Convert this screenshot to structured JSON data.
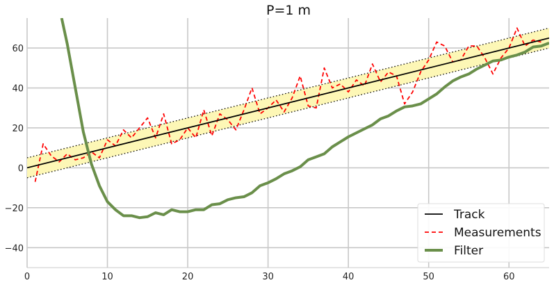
{
  "chart_data": {
    "type": "line",
    "title": "P=1 m",
    "xlabel": "",
    "ylabel": "",
    "xlim": [
      0,
      65
    ],
    "ylim": [
      -50,
      75
    ],
    "x_ticks": [
      0,
      10,
      20,
      30,
      40,
      50,
      60
    ],
    "y_ticks": [
      -40,
      -20,
      0,
      20,
      40,
      60
    ],
    "grid": true,
    "legend_position": "bottom-right",
    "band_half_width": 5,
    "track": {
      "x": [
        0,
        65
      ],
      "y": [
        0,
        65
      ]
    },
    "series": [
      {
        "name": "Track",
        "style": "solid",
        "color": "#000000",
        "x": [
          0,
          65
        ],
        "y": [
          0,
          65
        ]
      },
      {
        "name": "Measurements",
        "style": "dashed",
        "color": "#ff0000",
        "x": [
          1,
          2,
          3,
          4,
          5,
          6,
          7,
          8,
          9,
          10,
          11,
          12,
          13,
          14,
          15,
          16,
          17,
          18,
          19,
          20,
          21,
          22,
          23,
          24,
          25,
          26,
          27,
          28,
          29,
          30,
          31,
          32,
          33,
          34,
          35,
          36,
          37,
          38,
          39,
          40,
          41,
          42,
          43,
          44,
          45,
          46,
          47,
          48,
          49,
          50,
          51,
          52,
          53,
          54,
          55,
          56,
          57,
          58,
          59,
          60,
          61,
          62,
          63,
          64
        ],
        "y": [
          -7,
          12,
          6,
          3,
          7,
          4,
          5,
          8,
          5,
          14,
          11,
          19,
          15,
          20,
          25,
          15,
          27,
          12,
          14,
          20,
          15,
          29,
          16,
          27,
          24,
          19,
          29,
          40,
          27,
          30,
          34,
          28,
          35,
          46,
          31,
          30,
          50,
          40,
          42,
          38,
          44,
          41,
          52,
          43,
          48,
          46,
          32,
          38,
          48,
          54,
          63,
          61,
          53,
          54,
          61,
          61,
          55,
          47,
          55,
          60,
          70,
          61,
          64,
          63
        ]
      },
      {
        "name": "Filter",
        "style": "solid",
        "color": "#6a8f4a",
        "x": [
          4.3,
          5,
          6,
          7,
          8,
          9,
          10,
          11,
          12,
          13,
          14,
          15,
          16,
          17,
          18,
          19,
          20,
          21,
          22,
          23,
          24,
          25,
          26,
          27,
          28,
          29,
          30,
          31,
          32,
          33,
          34,
          35,
          36,
          37,
          38,
          39,
          40,
          41,
          42,
          43,
          44,
          45,
          46,
          47,
          48,
          49,
          50,
          51,
          52,
          53,
          54,
          55,
          56,
          57,
          58,
          59,
          60,
          61,
          62,
          63,
          64,
          65
        ],
        "y": [
          75,
          62,
          40,
          18,
          2,
          -9,
          -17,
          -21,
          -24,
          -24,
          -25,
          -24.5,
          -22.5,
          -23.5,
          -21,
          -22,
          -22,
          -21,
          -21,
          -18.5,
          -18,
          -16,
          -15,
          -14.5,
          -12.5,
          -9,
          -7.5,
          -5.5,
          -3,
          -1.5,
          0.5,
          4,
          5.5,
          7,
          10.5,
          13,
          15.5,
          17.5,
          19.5,
          21.5,
          24.5,
          26,
          28.5,
          30.5,
          31,
          32,
          34.5,
          37,
          40.5,
          43.5,
          45.5,
          47,
          49.5,
          51.5,
          53.5,
          54,
          55.5,
          56.5,
          58,
          60.5,
          61,
          62.5
        ]
      }
    ]
  }
}
